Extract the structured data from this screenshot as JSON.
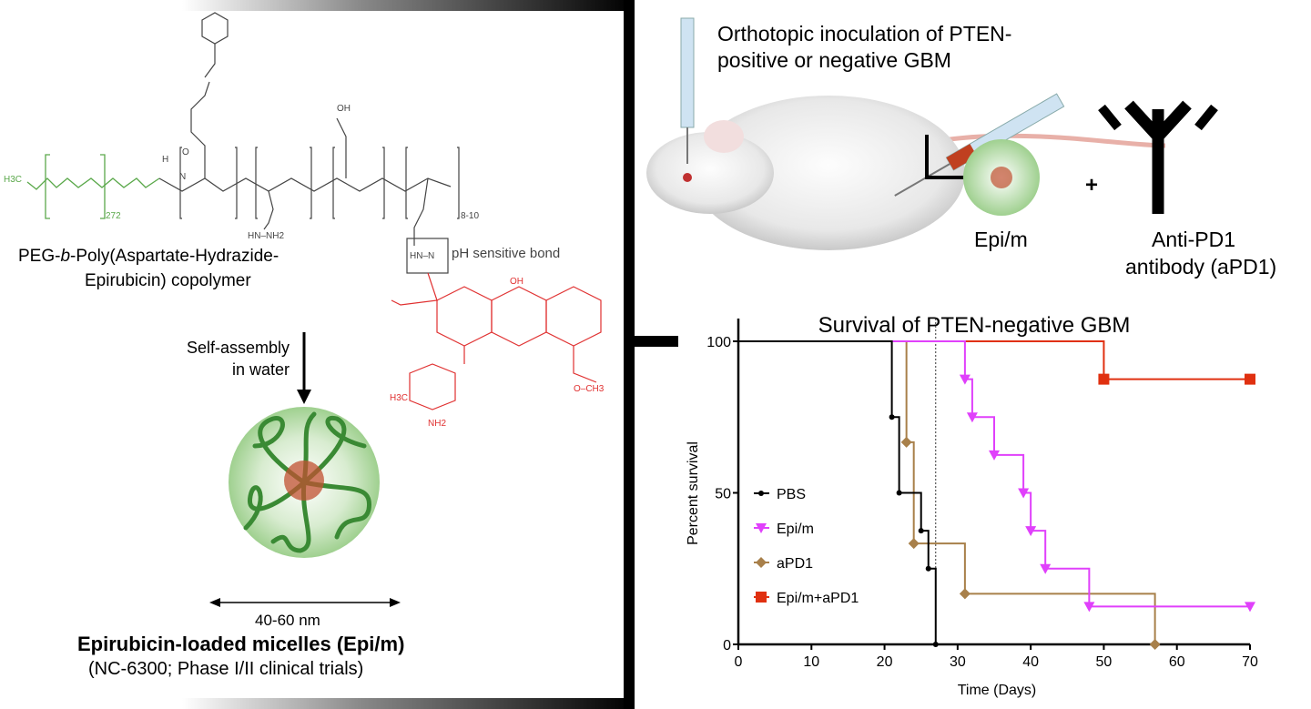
{
  "left_panel": {
    "chem_labels": {
      "h3c": "H3C",
      "o": "O",
      "n": "N",
      "h": "H",
      "oh": "OH",
      "peg_repeat": "272",
      "hydrazide": "HN–NH2",
      "hn_n": "HN–N",
      "repeat_end": "8-10",
      "nh2": "NH2",
      "och3": "O–CH3"
    },
    "ph_bond_label": "pH sensitive bond",
    "copolymer_line1_pre": "PEG-",
    "copolymer_line1_italic": "b",
    "copolymer_line1_post": "-Poly(Aspartate-Hydrazide-",
    "copolymer_line2": "Epirubicin) copolymer",
    "self_assembly_line1": "Self-assembly",
    "self_assembly_line2": "in water",
    "size_label": "40-60 nm",
    "micelle_title": "Epirubicin-loaded micelles (Epi/m)",
    "micelle_subtitle": "(NC-6300; Phase I/II clinical trials)",
    "colors": {
      "peg": "#5aa84a",
      "backbone": "#444444",
      "epirubicin": "#e03030"
    }
  },
  "right_panel": {
    "inoculation_line1": "Orthotopic inoculation of PTEN-",
    "inoculation_line2": "positive or negative GBM",
    "epim_label": "Epi/m",
    "plus": "+",
    "antibody_line1": "Anti-PD1",
    "antibody_line2": "antibody (aPD1)"
  },
  "chart_data": {
    "type": "line",
    "subtype": "kaplan-meier step",
    "title": "Survival of PTEN-negative GBM",
    "xlabel": "Time (Days)",
    "ylabel": "Percent survival",
    "xlim": [
      0,
      70
    ],
    "ylim": [
      0,
      100
    ],
    "xticks": [
      "0",
      "10",
      "20",
      "30",
      "40",
      "50",
      "60",
      "70"
    ],
    "yticks": [
      "0",
      "50",
      "100"
    ],
    "grid": false,
    "legend_placement": "left-middle",
    "reference_line_x": 27,
    "series": [
      {
        "name": "PBS",
        "color": "#000000",
        "marker": "circle",
        "points": [
          [
            0,
            100
          ],
          [
            21,
            75
          ],
          [
            22,
            50
          ],
          [
            25,
            37.5
          ],
          [
            26,
            25
          ],
          [
            27,
            0
          ]
        ]
      },
      {
        "name": "Epi/m",
        "color": "#e040fb",
        "marker": "triangle-down",
        "points": [
          [
            0,
            100
          ],
          [
            31,
            87.5
          ],
          [
            32,
            75
          ],
          [
            35,
            62.5
          ],
          [
            39,
            50
          ],
          [
            40,
            37.5
          ],
          [
            42,
            25
          ],
          [
            48,
            12.5
          ],
          [
            70,
            12.5
          ]
        ]
      },
      {
        "name": "aPD1",
        "color": "#a8804a",
        "marker": "diamond",
        "points": [
          [
            0,
            100
          ],
          [
            23,
            66.7
          ],
          [
            24,
            33.3
          ],
          [
            31,
            16.7
          ],
          [
            57,
            0
          ]
        ]
      },
      {
        "name": "Epi/m+aPD1",
        "color": "#e03010",
        "marker": "square",
        "points": [
          [
            0,
            100
          ],
          [
            50,
            87.5
          ],
          [
            70,
            87.5
          ]
        ]
      }
    ]
  }
}
